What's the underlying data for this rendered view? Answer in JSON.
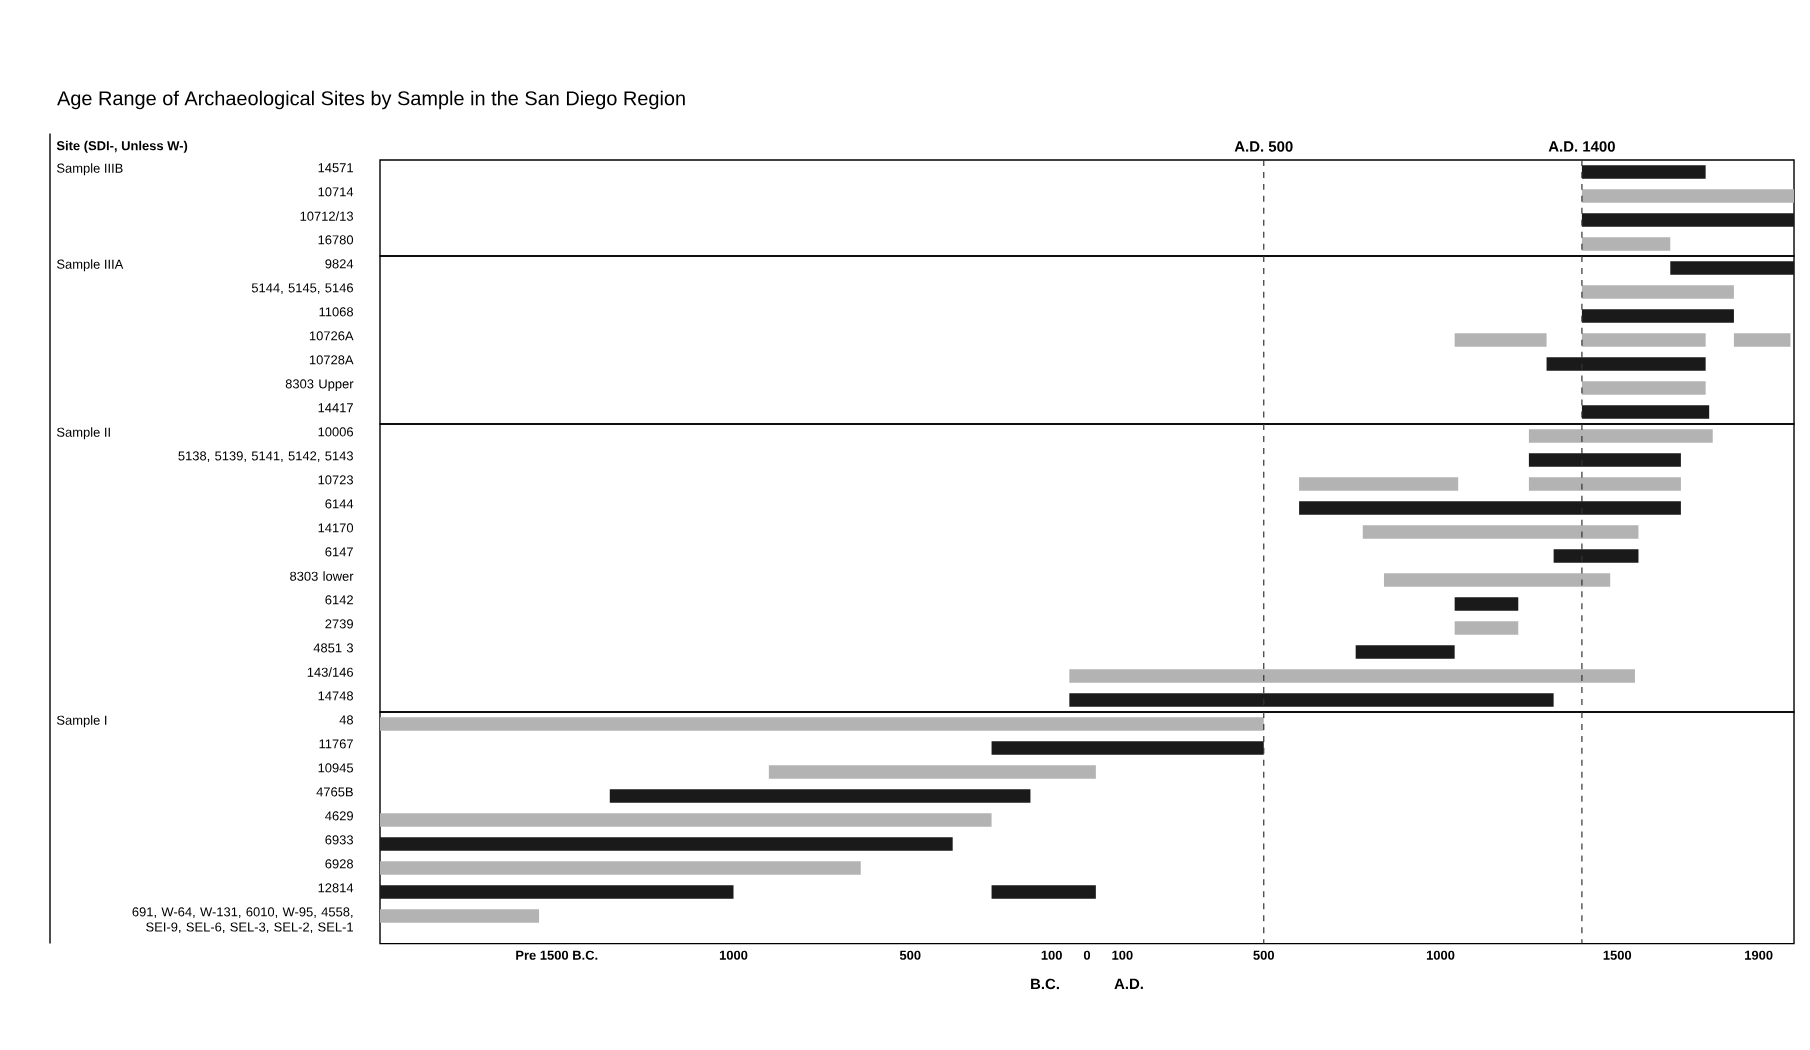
{
  "chart_data": [
    {
      "type": "bar",
      "orientation": "horizontal",
      "title": "Age Range of Archaeological Sites by Sample in the San Diego Region",
      "ylabel": "Sample IIIB",
      "categories": [
        "14571",
        "10714",
        "10712/13",
        "16780"
      ],
      "series": [
        {
          "base": [
            1400,
            1400,
            1400,
            1400
          ],
          "values": [
            350,
            600,
            600,
            250
          ],
          "colors": [
            "#1a1a1a",
            "#b3b3b3",
            "#1a1a1a",
            "#b3b3b3"
          ]
        }
      ],
      "xlim": [
        -2000,
        2000
      ],
      "tick_labels": "y",
      "ref_lines": [
        {
          "axis": "x",
          "value": 500,
          "label": "A.D. 500",
          "color": "#333333",
          "line_style": "dashed"
        },
        {
          "axis": "x",
          "value": 1400,
          "label": "A.D. 1400",
          "color": "#333333",
          "line_style": "dashed"
        }
      ],
      "annotations": [
        "Site (SDI-, Unless W-)"
      ]
    },
    {
      "type": "bar",
      "orientation": "horizontal",
      "ylabel": "Sample IIIA",
      "categories": [
        "9824",
        "5144, 5145, 5146",
        "11068",
        "10726A",
        "10728A",
        "8303 Upper",
        "14417"
      ],
      "series": [
        {
          "base": [
            1650,
            1400,
            1400,
            1400,
            1300,
            1400,
            1400
          ],
          "values": [
            350,
            430,
            430,
            350,
            450,
            350,
            360
          ],
          "colors": [
            "#1a1a1a",
            "#b3b3b3",
            "#1a1a1a",
            "#b3b3b3",
            "#1a1a1a",
            "#b3b3b3",
            "#1a1a1a"
          ]
        },
        {
          "base": [
            null,
            null,
            null,
            1040,
            null,
            null,
            null
          ],
          "values": [
            null,
            null,
            null,
            260,
            null,
            null,
            null
          ],
          "colors": [
            null,
            null,
            null,
            "#b3b3b3",
            null,
            null,
            null
          ]
        },
        {
          "base": [
            null,
            null,
            null,
            1830,
            null,
            null,
            null
          ],
          "values": [
            null,
            null,
            null,
            160,
            null,
            null,
            null
          ],
          "colors": [
            null,
            null,
            null,
            "#b3b3b3",
            null,
            null,
            null
          ]
        }
      ],
      "xlim": [
        -2000,
        2000
      ],
      "tick_labels": "y",
      "ref_lines": [
        {
          "axis": "x",
          "value": 500,
          "color": "#333333",
          "line_style": "dashed"
        },
        {
          "axis": "x",
          "value": 1400,
          "color": "#333333",
          "line_style": "dashed"
        }
      ]
    },
    {
      "type": "bar",
      "orientation": "horizontal",
      "ylabel": "Sample II",
      "categories": [
        "10006",
        "5138, 5139, 5141, 5142, 5143",
        "10723",
        "6144",
        "14170",
        "6147",
        "8303 lower",
        "6142",
        "2739",
        "4851 3",
        "143/146",
        "14748"
      ],
      "series": [
        {
          "base": [
            1250,
            1250,
            1250,
            600,
            780,
            1320,
            840,
            1040,
            1040,
            760,
            -50,
            -50
          ],
          "values": [
            520,
            430,
            430,
            1080,
            780,
            240,
            640,
            180,
            180,
            280,
            1600,
            1370
          ],
          "colors": [
            "#b3b3b3",
            "#1a1a1a",
            "#b3b3b3",
            "#1a1a1a",
            "#b3b3b3",
            "#1a1a1a",
            "#b3b3b3",
            "#1a1a1a",
            "#b3b3b3",
            "#1a1a1a",
            "#b3b3b3",
            "#1a1a1a"
          ]
        },
        {
          "base": [
            null,
            null,
            600,
            null,
            null,
            null,
            null,
            null,
            null,
            null,
            null,
            null
          ],
          "values": [
            null,
            null,
            450,
            null,
            null,
            null,
            null,
            null,
            null,
            null,
            null,
            null
          ],
          "colors": [
            null,
            null,
            "#b3b3b3",
            null,
            null,
            null,
            null,
            null,
            null,
            null,
            null,
            null
          ]
        }
      ],
      "xlim": [
        -2000,
        2000
      ],
      "tick_labels": "y",
      "ref_lines": [
        {
          "axis": "x",
          "value": 500,
          "color": "#333333",
          "line_style": "dashed"
        },
        {
          "axis": "x",
          "value": 1400,
          "color": "#333333",
          "line_style": "dashed"
        }
      ]
    },
    {
      "type": "bar",
      "orientation": "horizontal",
      "ylabel": "Sample I",
      "categories": [
        "48",
        "11767",
        "10945",
        "4765B",
        "4629",
        "6933",
        "6928",
        "12814",
        "691, W-64, W-131, 6010, W-95, 4558, SEI-9, SEL-6, SEL-3, SEL-2, SEL-1"
      ],
      "series": [
        {
          "base": [
            -2000,
            -270,
            -900,
            -1350,
            -2000,
            -2000,
            -2000,
            -2000,
            -2000
          ],
          "values": [
            2500,
            770,
            925,
            1190,
            1730,
            1620,
            1360,
            1000,
            450
          ],
          "colors": [
            "#b3b3b3",
            "#1a1a1a",
            "#b3b3b3",
            "#1a1a1a",
            "#b3b3b3",
            "#1a1a1a",
            "#b3b3b3",
            "#1a1a1a",
            "#b3b3b3"
          ]
        },
        {
          "base": [
            null,
            null,
            null,
            null,
            null,
            null,
            null,
            -270,
            null
          ],
          "values": [
            null,
            null,
            null,
            null,
            null,
            null,
            null,
            295,
            null
          ],
          "colors": [
            null,
            null,
            null,
            null,
            null,
            null,
            null,
            "#1a1a1a",
            null
          ]
        }
      ],
      "xlim": [
        -2000,
        2000
      ],
      "xticks": [
        {
          "value": -1500,
          "label": "Pre 1500 B.C."
        },
        {
          "value": -1000,
          "label": "1000"
        },
        {
          "value": -500,
          "label": "500"
        },
        {
          "value": -100,
          "label": "100"
        },
        0,
        100,
        500,
        1000,
        1500,
        1900
      ],
      "ref_lines": [
        {
          "axis": "x",
          "value": 500,
          "color": "#333333",
          "line_style": "dashed"
        },
        {
          "axis": "x",
          "value": 1400,
          "color": "#333333",
          "line_style": "dashed"
        }
      ],
      "annotations": [
        "B.C.",
        "A.D."
      ]
    }
  ]
}
